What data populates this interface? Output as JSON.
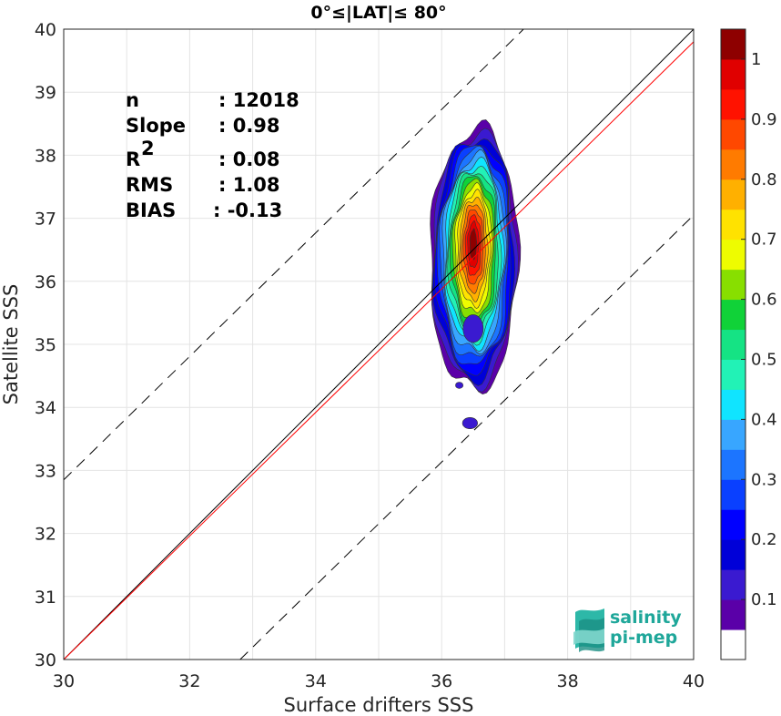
{
  "chart_data": {
    "type": "heatmap",
    "title": "0°≤|LAT|≤ 80°",
    "xlabel": "Surface drifters SSS",
    "ylabel": "Satellite SSS",
    "xlim": [
      30,
      40
    ],
    "ylim": [
      30,
      40
    ],
    "xticks": [
      "30",
      "32",
      "34",
      "36",
      "38",
      "40"
    ],
    "yticks": [
      "30",
      "31",
      "32",
      "33",
      "34",
      "35",
      "36",
      "37",
      "38",
      "39",
      "40"
    ],
    "grid": true,
    "stats": [
      {
        "label": "n",
        "value": ": 12018"
      },
      {
        "label": "Slope",
        "value": ": 0.98"
      },
      {
        "label": "R",
        "superscript": "2",
        "value": ": 0.08"
      },
      {
        "label": "RMS",
        "value": ": 1.08"
      },
      {
        "label": "BIAS",
        "value": ": -0.13"
      }
    ],
    "lines": [
      {
        "kind": "one-to-one",
        "color": "#000000",
        "x": [
          30,
          40
        ],
        "y": [
          30,
          40
        ]
      },
      {
        "kind": "regression",
        "color": "#ff0000",
        "x": [
          30,
          40
        ],
        "y": [
          30,
          39.8
        ]
      },
      {
        "kind": "upper-dashed",
        "color": "#000000",
        "x": [
          30,
          37.3
        ],
        "y": [
          32.85,
          40
        ]
      },
      {
        "kind": "lower-dashed",
        "color": "#000000",
        "x": [
          32.8,
          40
        ],
        "y": [
          30,
          37.05
        ]
      }
    ],
    "colorbar": {
      "ticks": [
        "0.1",
        "0.2",
        "0.3",
        "0.4",
        "0.5",
        "0.6",
        "0.7",
        "0.8",
        "0.9",
        "1"
      ],
      "levels": [
        0.05,
        0.1,
        0.15,
        0.2,
        0.25,
        0.3,
        0.35,
        0.4,
        0.45,
        0.5,
        0.55,
        0.6,
        0.65,
        0.7,
        0.75,
        0.8,
        0.85,
        0.9,
        0.95,
        1.0
      ],
      "colors": [
        "#ffffff",
        "#5a00a8",
        "#3a1ad0",
        "#0000d8",
        "#0000ff",
        "#0a40ff",
        "#1c75ff",
        "#38a6ff",
        "#10e4ff",
        "#22f2b6",
        "#15e384",
        "#10d238",
        "#88df00",
        "#eefc00",
        "#ffe200",
        "#ffb000",
        "#ff7b00",
        "#ff4800",
        "#ff1200",
        "#e00000",
        "#8e0000"
      ]
    },
    "density_peak": {
      "x": 36.5,
      "y": 36.5
    }
  },
  "logo": {
    "line1": "salinity",
    "line2": "pi-mep"
  }
}
